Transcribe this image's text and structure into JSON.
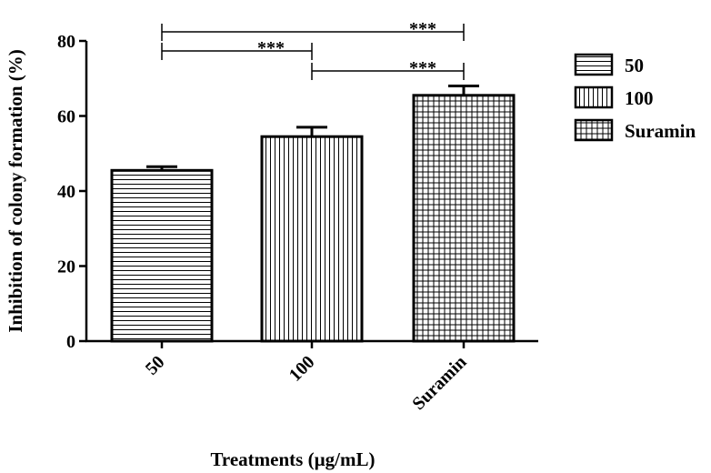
{
  "chart_data": {
    "type": "bar",
    "xlabel": "Treatments (µg/mL)",
    "ylabel": "Inhibition of colony formation (%)",
    "ylim": [
      0,
      80
    ],
    "yticks": [
      "0",
      "20",
      "40",
      "60",
      "80"
    ],
    "categories": [
      "50",
      "100",
      "Suramin"
    ],
    "values": [
      45.5,
      54.5,
      65.5
    ],
    "errors": [
      1.0,
      2.5,
      2.5
    ],
    "patterns": [
      "horizontal-lines",
      "vertical-lines",
      "grid"
    ],
    "significance": [
      {
        "from": 0,
        "to": 2,
        "label": "***"
      },
      {
        "from": 0,
        "to": 1,
        "label": "***"
      },
      {
        "from": 1,
        "to": 2,
        "label": "***"
      }
    ],
    "legend": {
      "placement": "right",
      "entries": [
        "50",
        "100",
        "Suramin"
      ]
    },
    "grid": false
  }
}
